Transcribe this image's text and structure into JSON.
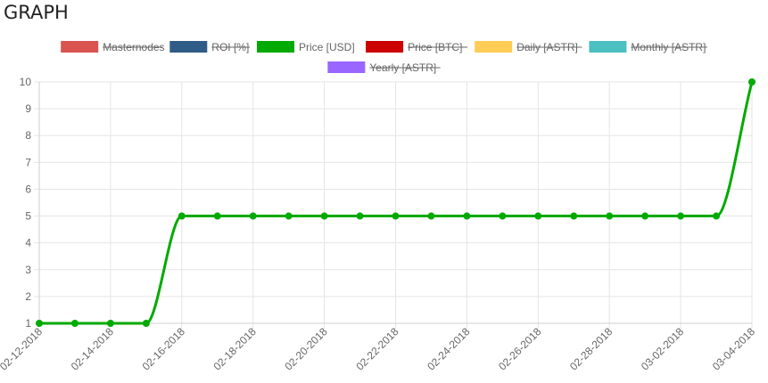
{
  "page": {
    "title": "GRAPH"
  },
  "chart_data": {
    "type": "line",
    "title": "",
    "xlabel": "",
    "ylabel": "",
    "ylim": [
      1,
      10
    ],
    "yticks": [
      1,
      2,
      3,
      4,
      5,
      6,
      7,
      8,
      9,
      10
    ],
    "grid": true,
    "legend_position": "top",
    "x": [
      "02-12-2018",
      "02-13-2018",
      "02-14-2018",
      "02-15-2018",
      "02-16-2018",
      "02-17-2018",
      "02-18-2018",
      "02-19-2018",
      "02-20-2018",
      "02-21-2018",
      "02-22-2018",
      "02-23-2018",
      "02-24-2018",
      "02-25-2018",
      "02-26-2018",
      "02-27-2018",
      "02-28-2018",
      "03-01-2018",
      "03-02-2018",
      "03-03-2018",
      "03-04-2018"
    ],
    "x_tick_labels": [
      "02-12-2018",
      "02-14-2018",
      "02-16-2018",
      "02-18-2018",
      "02-20-2018",
      "02-22-2018",
      "02-24-2018",
      "02-26-2018",
      "02-28-2018",
      "03-02-2018",
      "03-04-2018"
    ],
    "legend": [
      {
        "name": "Masternodes",
        "color": "#d9534f",
        "hidden": true
      },
      {
        "name": "ROI [%]",
        "color": "#2e5c87",
        "hidden": true
      },
      {
        "name": "Price [USD]",
        "color": "#00aa00",
        "hidden": false
      },
      {
        "name": "Price [BTC]",
        "color": "#cc0000",
        "hidden": true
      },
      {
        "name": "Daily [ASTR]",
        "color": "#ffcc55",
        "hidden": true
      },
      {
        "name": "Monthly [ASTR]",
        "color": "#4bc0c0",
        "hidden": true
      },
      {
        "name": "Yearly [ASTR]",
        "color": "#9966ff",
        "hidden": true
      }
    ],
    "series": [
      {
        "name": "Price [USD]",
        "color": "#00aa00",
        "values": [
          1,
          1,
          1,
          1,
          5,
          5,
          5,
          5,
          5,
          5,
          5,
          5,
          5,
          5,
          5,
          5,
          5,
          5,
          5,
          5,
          10
        ]
      }
    ]
  }
}
